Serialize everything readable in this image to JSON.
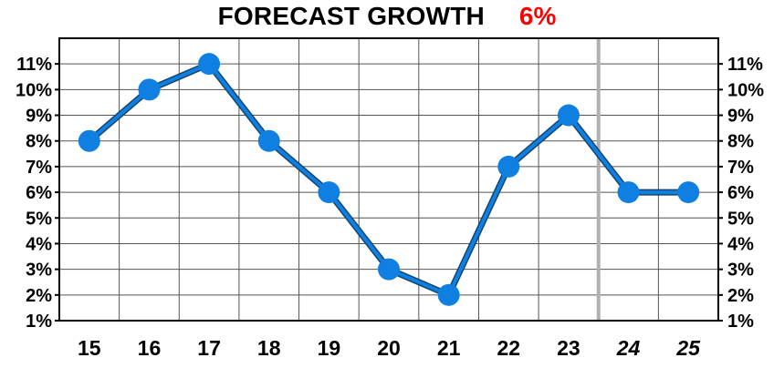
{
  "chart_data": {
    "type": "line",
    "title": "FORECAST GROWTH",
    "title_value": "6%",
    "categories": [
      "15",
      "16",
      "17",
      "18",
      "19",
      "20",
      "21",
      "22",
      "23",
      "24",
      "25"
    ],
    "forecast_categories": [
      "24",
      "25"
    ],
    "series": [
      {
        "values": [
          8,
          10,
          11,
          8,
          6,
          3,
          2,
          7,
          9,
          6,
          6
        ]
      }
    ],
    "y_ticks": [
      "1%",
      "2%",
      "3%",
      "4%",
      "5%",
      "6%",
      "7%",
      "8%",
      "9%",
      "10%",
      "11%"
    ],
    "ylim": [
      1,
      12
    ],
    "grid": true,
    "axes_both_sides": true,
    "colors": {
      "series": "#0f7fe2",
      "marker": "#0f7fe2",
      "title_value": "#ff0000",
      "grid": "#555555",
      "forecast_divider": "#b0b0b0"
    }
  }
}
